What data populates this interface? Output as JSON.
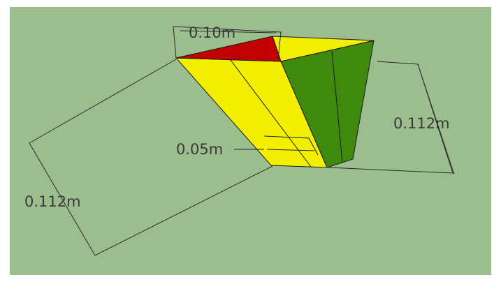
{
  "dimensions": [
    {
      "label": "0.10m"
    },
    {
      "label": "0.05m"
    },
    {
      "label": "0.112m"
    },
    {
      "label": "0.112m"
    }
  ]
}
